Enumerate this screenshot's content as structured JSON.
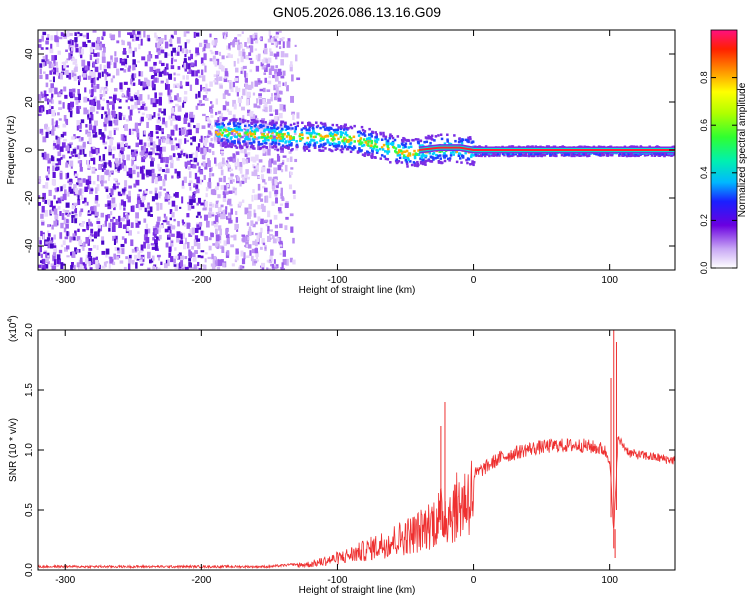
{
  "title": "GN05.2026.086.13.16.G09",
  "chart_data": [
    {
      "type": "heatmap",
      "xlabel": "Height of straight line (km)",
      "ylabel": "Frequency (Hz)",
      "xlim": [
        -320,
        148
      ],
      "ylim": [
        -50,
        50
      ],
      "xticks": [
        -300,
        -200,
        -100,
        0,
        100
      ],
      "yticks": [
        -40,
        -20,
        0,
        20,
        40
      ],
      "colorbar": {
        "label": "Normalized spectral amplitude",
        "range": [
          0,
          1
        ],
        "ticks": [
          "0.0",
          "0.2",
          "0.4",
          "0.6",
          "0.8"
        ]
      },
      "ridge": [
        {
          "x": -190,
          "y": 8
        },
        {
          "x": -160,
          "y": 7
        },
        {
          "x": -130,
          "y": 6
        },
        {
          "x": -110,
          "y": 6
        },
        {
          "x": -90,
          "y": 5
        },
        {
          "x": -75,
          "y": 3
        },
        {
          "x": -60,
          "y": 1
        },
        {
          "x": -50,
          "y": -1
        },
        {
          "x": -40,
          "y": 0
        },
        {
          "x": -25,
          "y": 1
        },
        {
          "x": -10,
          "y": 1
        },
        {
          "x": 0,
          "y": 0
        },
        {
          "x": 50,
          "y": 0
        },
        {
          "x": 95,
          "y": 0
        },
        {
          "x": 148,
          "y": 0
        }
      ]
    },
    {
      "type": "line",
      "xlabel": "Height of straight line (km)",
      "ylabel": "SNR (10 * v/v)",
      "yscale_label": "(x10",
      "yscale_exp": "4",
      "yscale_suffix": ")",
      "xlim": [
        -320,
        148
      ],
      "ylim": [
        0,
        2
      ],
      "xticks": [
        -300,
        -200,
        -100,
        0,
        100
      ],
      "yticks": [
        "0.0",
        "0.5",
        "1.0",
        "1.5",
        "2.0"
      ],
      "color": "#ee3030",
      "series_envelope": [
        {
          "x": -320,
          "y": 0.03
        },
        {
          "x": -150,
          "y": 0.03
        },
        {
          "x": -120,
          "y": 0.06
        },
        {
          "x": -100,
          "y": 0.12
        },
        {
          "x": -80,
          "y": 0.2
        },
        {
          "x": -60,
          "y": 0.3
        },
        {
          "x": -40,
          "y": 0.4
        },
        {
          "x": -25,
          "y": 0.55
        },
        {
          "x": -15,
          "y": 0.62
        },
        {
          "x": 0,
          "y": 0.8
        },
        {
          "x": 20,
          "y": 0.95
        },
        {
          "x": 40,
          "y": 1.02
        },
        {
          "x": 60,
          "y": 1.05
        },
        {
          "x": 80,
          "y": 1.05
        },
        {
          "x": 95,
          "y": 1.02
        },
        {
          "x": 100,
          "y": 0.95
        },
        {
          "x": 103,
          "y": 0.3
        },
        {
          "x": 106,
          "y": 1.1
        },
        {
          "x": 115,
          "y": 0.98
        },
        {
          "x": 148,
          "y": 0.92
        }
      ],
      "spikes": [
        {
          "x": -24,
          "y": 1.2
        },
        {
          "x": -21,
          "y": 1.4
        },
        {
          "x": 101,
          "y": 1.6
        },
        {
          "x": 103,
          "y": 2.0
        },
        {
          "x": 104,
          "y": 0.1
        },
        {
          "x": 105,
          "y": 1.9
        }
      ]
    }
  ]
}
